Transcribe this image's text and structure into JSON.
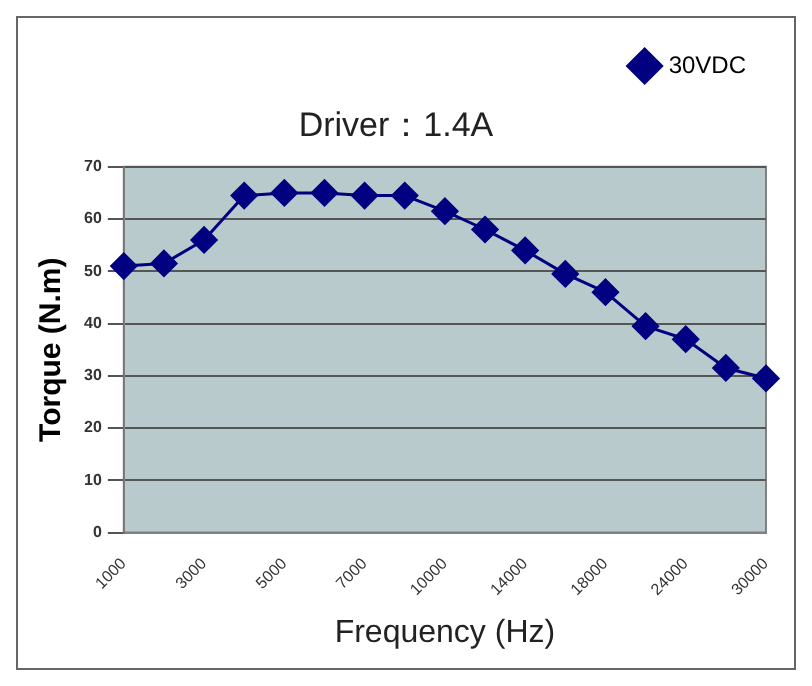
{
  "chart_data": {
    "type": "line",
    "title": "Driver：1.4A",
    "xlabel": "Frequency (Hz)",
    "ylabel": "Torque (N.m)",
    "categories": [
      "1000",
      null,
      "3000",
      null,
      "5000",
      null,
      "7000",
      null,
      "10000",
      null,
      "14000",
      null,
      "18000",
      null,
      "24000",
      null,
      "30000"
    ],
    "series": [
      {
        "name": "30VDC",
        "color": "#000080",
        "values": [
          51,
          51.5,
          56,
          64.5,
          65,
          65,
          64.5,
          64.5,
          61.5,
          58,
          54,
          49.5,
          46,
          39.5,
          37,
          31.5,
          29.5
        ]
      }
    ],
    "ylim": [
      0,
      70
    ],
    "yticks": [
      0,
      10,
      20,
      30,
      40,
      50,
      60,
      70
    ],
    "grid": "y",
    "legend": "top right",
    "marker": "diamond",
    "line_style": "solid"
  }
}
